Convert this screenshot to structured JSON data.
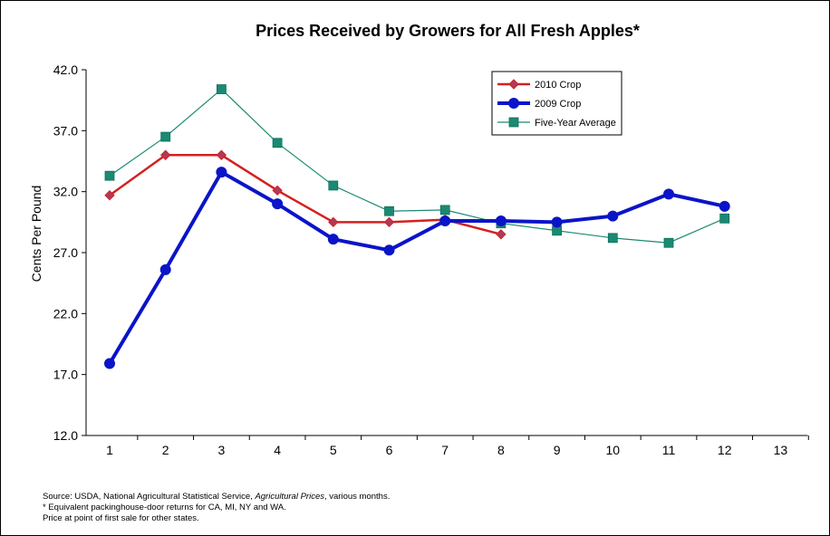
{
  "chart_data": {
    "type": "line",
    "title": "Prices Received by Growers for All Fresh Apples*",
    "xlabel": "",
    "ylabel": "Cents Per Pound",
    "x": [
      1,
      2,
      3,
      4,
      5,
      6,
      7,
      8,
      9,
      10,
      11,
      12,
      13
    ],
    "xlim": [
      1,
      13
    ],
    "ylim": [
      12.0,
      42.0
    ],
    "yticks": [
      "12.0",
      "17.0",
      "22.0",
      "27.0",
      "32.0",
      "37.0",
      "42.0"
    ],
    "xticks": [
      "1",
      "2",
      "3",
      "4",
      "5",
      "6",
      "7",
      "8",
      "9",
      "10",
      "11",
      "12",
      "13"
    ],
    "grid": false,
    "legend_position": "top-right",
    "series": [
      {
        "name": "2010 Crop",
        "color": "#d42020",
        "marker": "diamond",
        "values": [
          31.7,
          35.0,
          35.0,
          32.1,
          29.5,
          29.5,
          29.7,
          28.5,
          null,
          null,
          null,
          null,
          null
        ]
      },
      {
        "name": "2009 Crop",
        "color": "#0a14c8",
        "marker": "circle",
        "values": [
          17.9,
          25.6,
          33.6,
          31.0,
          28.1,
          27.2,
          29.6,
          29.6,
          29.5,
          30.0,
          31.8,
          30.8,
          null
        ]
      },
      {
        "name": "Five-Year Average",
        "color": "#1a8a72",
        "marker": "square",
        "values": [
          33.3,
          36.5,
          40.4,
          36.0,
          32.5,
          30.4,
          30.5,
          29.4,
          28.8,
          28.2,
          27.8,
          29.8,
          null
        ]
      }
    ]
  },
  "source": {
    "prefix": "Source:  USDA, National Agricultural Statistical Service, ",
    "italic": "Agricultural Prices",
    "suffix": ", various months.",
    "note1": "* Equivalent packinghouse-door returns for CA, MI, NY and WA.",
    "note2": "Price at point of first sale for other states."
  }
}
